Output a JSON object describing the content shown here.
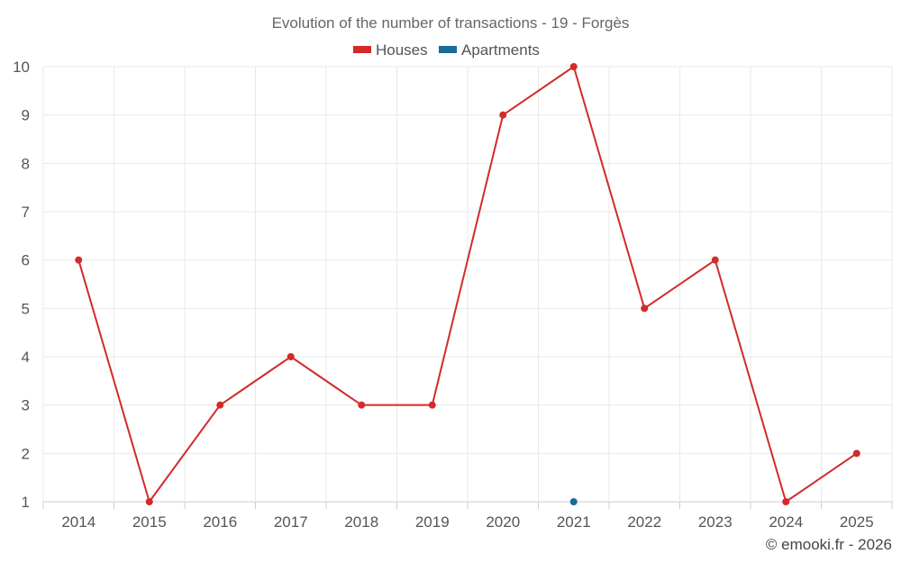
{
  "chart_data": {
    "type": "line",
    "title": "Evolution of the number of transactions - 19 - Forgès",
    "categories": [
      "2014",
      "2015",
      "2016",
      "2017",
      "2018",
      "2019",
      "2020",
      "2021",
      "2022",
      "2023",
      "2024",
      "2025"
    ],
    "series": [
      {
        "name": "Houses",
        "color": "#d32a2a",
        "values": [
          6,
          1,
          3,
          4,
          3,
          3,
          9,
          10,
          5,
          6,
          1,
          2
        ]
      },
      {
        "name": "Apartments",
        "color": "#1a6a9a",
        "values": [
          null,
          null,
          null,
          null,
          null,
          null,
          null,
          1,
          null,
          null,
          null,
          null
        ]
      }
    ],
    "xlabel": "",
    "ylabel": "",
    "ylim": [
      1,
      10
    ],
    "yticks": [
      1,
      2,
      3,
      4,
      5,
      6,
      7,
      8,
      9,
      10
    ],
    "grid": true,
    "legend_position": "top-center"
  },
  "credit": "© emooki.fr - 2026"
}
